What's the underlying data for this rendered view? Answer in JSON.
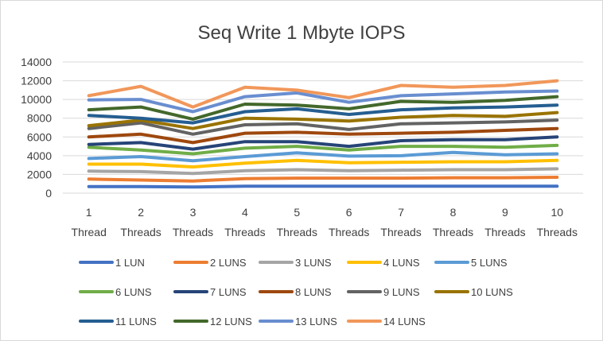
{
  "chart_data": {
    "type": "line",
    "title": "Seq Write 1 Mbyte IOPS",
    "x": [
      "1",
      "2",
      "3",
      "4",
      "5",
      "6",
      "7",
      "8",
      "9",
      "10"
    ],
    "x_sublabels": [
      "Thread",
      "Threads",
      "Threads",
      "Threads",
      "Threads",
      "Threads",
      "Threads",
      "Threads",
      "Threads",
      "Threads"
    ],
    "ylim": [
      0,
      14000
    ],
    "yticks": [
      "0",
      "2000",
      "4000",
      "6000",
      "8000",
      "10000",
      "12000",
      "14000"
    ],
    "grid": true,
    "legend_position": "bottom",
    "series": [
      {
        "name": "1 LUN",
        "color": "#4472C4",
        "values": [
          700,
          700,
          650,
          750,
          750,
          750,
          750,
          750,
          750,
          750
        ]
      },
      {
        "name": "2 LUNS",
        "color": "#ED7D31",
        "values": [
          1500,
          1400,
          1300,
          1550,
          1600,
          1600,
          1600,
          1650,
          1650,
          1700
        ]
      },
      {
        "name": "3 LUNS",
        "color": "#A5A5A5",
        "values": [
          2350,
          2300,
          2100,
          2400,
          2500,
          2400,
          2450,
          2500,
          2500,
          2600
        ]
      },
      {
        "name": "4 LUNS",
        "color": "#FFC000",
        "values": [
          3100,
          3100,
          2800,
          3200,
          3500,
          3250,
          3300,
          3350,
          3350,
          3500
        ]
      },
      {
        "name": "5 LUNS",
        "color": "#5B9BD5",
        "values": [
          3700,
          3900,
          3450,
          3900,
          4300,
          3950,
          4000,
          4350,
          4100,
          4200
        ]
      },
      {
        "name": "6 LUNS",
        "color": "#70AD47",
        "values": [
          4900,
          4600,
          4200,
          4800,
          5000,
          4600,
          5000,
          5000,
          4900,
          5100
        ]
      },
      {
        "name": "7 LUNS",
        "color": "#264478",
        "values": [
          5200,
          5400,
          4700,
          5500,
          5500,
          5000,
          5600,
          5700,
          5700,
          6000
        ]
      },
      {
        "name": "8 LUNS",
        "color": "#9E480E",
        "values": [
          6000,
          6300,
          5400,
          6400,
          6500,
          6300,
          6400,
          6500,
          6700,
          6900
        ]
      },
      {
        "name": "9 LUNS",
        "color": "#636363",
        "values": [
          6900,
          7500,
          6300,
          7300,
          7400,
          6800,
          7400,
          7500,
          7600,
          7800
        ]
      },
      {
        "name": "10 LUNS",
        "color": "#997300",
        "values": [
          7200,
          7800,
          6900,
          8000,
          7900,
          7700,
          8100,
          8300,
          8200,
          8600
        ]
      },
      {
        "name": "11 LUNS",
        "color": "#255E91",
        "values": [
          8300,
          8000,
          7500,
          8700,
          9000,
          8400,
          8900,
          9100,
          9200,
          9400
        ]
      },
      {
        "name": "12 LUNS",
        "color": "#43682B",
        "values": [
          8900,
          9200,
          7900,
          9500,
          9400,
          9000,
          9800,
          9700,
          9900,
          10300
        ]
      },
      {
        "name": "13 LUNS",
        "color": "#698ED0",
        "values": [
          9950,
          10000,
          8700,
          10300,
          10700,
          9700,
          10400,
          10600,
          10800,
          10900
        ]
      },
      {
        "name": "14 LUNS",
        "color": "#F1975A",
        "values": [
          10400,
          11400,
          9200,
          11300,
          11000,
          10200,
          11500,
          11300,
          11500,
          12000
        ]
      }
    ]
  }
}
